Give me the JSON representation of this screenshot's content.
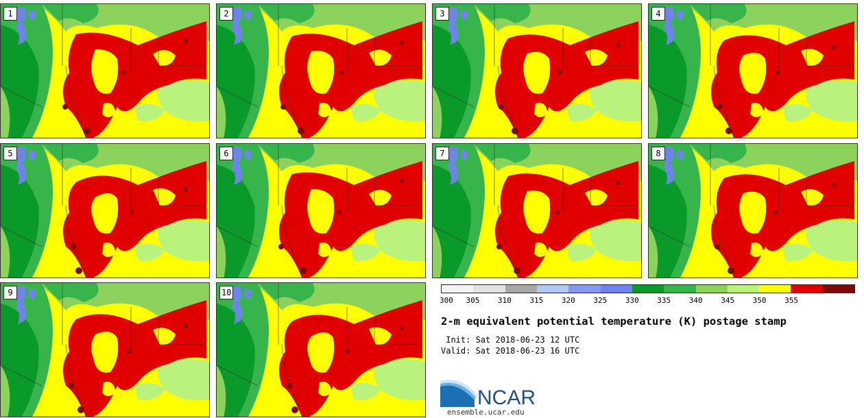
{
  "stamps": [
    {
      "label": "1"
    },
    {
      "label": "2"
    },
    {
      "label": "3"
    },
    {
      "label": "4"
    },
    {
      "label": "5"
    },
    {
      "label": "6"
    },
    {
      "label": "7"
    },
    {
      "label": "8"
    },
    {
      "label": "9"
    },
    {
      "label": "10"
    }
  ],
  "colorbar": {
    "ticks": [
      "300",
      "305",
      "310",
      "315",
      "320",
      "325",
      "330",
      "335",
      "340",
      "345",
      "350",
      "355"
    ],
    "colors": [
      "#f4f4f4",
      "#e2e2e2",
      "#a9a9a9",
      "#b4c8f5",
      "#8499ef",
      "#6f84ea",
      "#0a9a2a",
      "#38b54a",
      "#8cd35e",
      "#b9f37d",
      "#ffff00",
      "#e00000",
      "#7d0a0a"
    ]
  },
  "title": "2-m equivalent potential temperature (K) postage stamp",
  "init_text": " Init: Sat 2018-06-23 12 UTC",
  "valid_text": "Valid: Sat 2018-06-23 16 UTC",
  "logo": {
    "name": "NCAR",
    "url_text": "ensemble.ucar.edu"
  }
}
